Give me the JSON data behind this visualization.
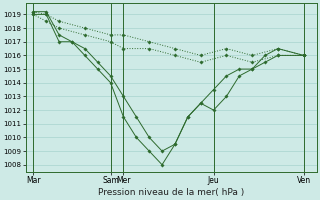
{
  "title": "",
  "xlabel": "Pression niveau de la mer( hPa )",
  "ylabel": "",
  "background_color": "#ceeae6",
  "grid_color": "#a8d4ce",
  "line_color": "#2d6a2d",
  "x_tick_positions": [
    0,
    3.0,
    3.5,
    7.0,
    10.5
  ],
  "x_tick_labels": [
    "Mar",
    "Sam",
    "Mer",
    "Jeu",
    "Ven"
  ],
  "ylim": [
    1007.5,
    1019.8
  ],
  "yticks": [
    1008,
    1009,
    1010,
    1011,
    1012,
    1013,
    1014,
    1015,
    1016,
    1017,
    1018,
    1019
  ],
  "vlines": [
    0,
    3.0,
    3.5,
    7.0,
    10.5
  ],
  "series": [
    {
      "x": [
        0,
        0.5,
        1.0,
        1.5,
        2.0,
        2.5,
        3.0,
        3.5,
        4.0,
        4.5,
        5.0,
        5.5,
        6.0,
        6.5,
        7.0,
        7.5,
        8.0,
        8.5,
        9.0,
        9.5,
        10.5
      ],
      "y": [
        1019,
        1019,
        1017,
        1017,
        1016,
        1015,
        1014,
        1011.5,
        1010,
        1009,
        1008,
        1009.5,
        1011.5,
        1012.5,
        1013.5,
        1014.5,
        1015,
        1015,
        1016,
        1016.5,
        1016
      ],
      "dashed": false
    },
    {
      "x": [
        0,
        0.5,
        1.0,
        1.5,
        2.0,
        2.5,
        3.0,
        3.5,
        4.0,
        4.5,
        5.0,
        5.5,
        6.0,
        6.5,
        7.0,
        7.5,
        8.0,
        8.5,
        9.0,
        9.5,
        10.5
      ],
      "y": [
        1019.2,
        1019.2,
        1017.5,
        1017,
        1016.5,
        1015.5,
        1014.5,
        1013,
        1011.5,
        1010,
        1009,
        1009.5,
        1011.5,
        1012.5,
        1012,
        1013,
        1014.5,
        1015,
        1015.5,
        1016,
        1016
      ],
      "dashed": false
    },
    {
      "x": [
        0,
        0.5,
        1.0,
        2.0,
        3.0,
        3.5,
        4.5,
        5.5,
        6.5,
        7.5,
        8.5,
        9.5,
        10.5
      ],
      "y": [
        1019.2,
        1019,
        1018.5,
        1018,
        1017.5,
        1017.5,
        1017,
        1016.5,
        1016,
        1016.5,
        1016,
        1016.5,
        1016
      ],
      "dashed": true
    },
    {
      "x": [
        0,
        0.5,
        1.0,
        2.0,
        3.0,
        3.5,
        4.5,
        5.5,
        6.5,
        7.5,
        8.5,
        9.5,
        10.5
      ],
      "y": [
        1019,
        1018.5,
        1018,
        1017.5,
        1017,
        1016.5,
        1016.5,
        1016,
        1015.5,
        1016,
        1015.5,
        1016,
        1016
      ],
      "dashed": true
    }
  ]
}
